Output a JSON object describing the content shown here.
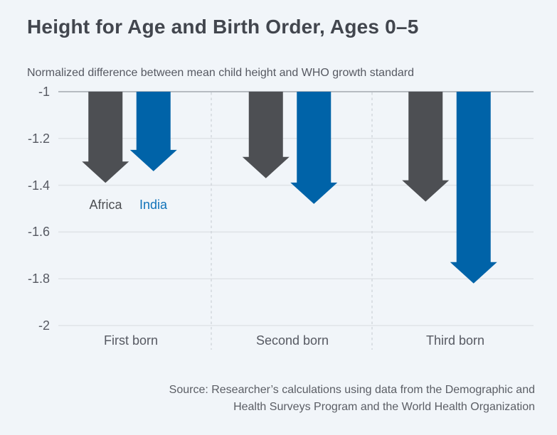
{
  "header": {
    "title": "Height for Age and Birth Order, Ages 0–5"
  },
  "chart_data": {
    "type": "bar",
    "style": "downward-arrow-bars",
    "title": "Height for Age and Birth Order, Ages 0–5",
    "axis_title": "Normalized difference between mean child height and WHO growth standard",
    "categories": [
      "First born",
      "Second born",
      "Third born"
    ],
    "series": [
      {
        "name": "Africa",
        "color": "#4d4f53",
        "values": [
          -1.39,
          -1.37,
          -1.47
        ]
      },
      {
        "name": "India",
        "color": "#0063a8",
        "values": [
          -1.34,
          -1.48,
          -1.82
        ]
      }
    ],
    "baseline": -1,
    "ylim": [
      -2,
      -1
    ],
    "yticks": [
      -1,
      -1.2,
      -1.4,
      -1.6,
      -1.8,
      -2
    ],
    "ytick_labels": [
      "-1",
      "-1.2",
      "-1.4",
      "-1.6",
      "-1.8",
      "-2"
    ],
    "legend": {
      "labels": [
        "Africa",
        "India"
      ],
      "text_colors": [
        "#4c4e52",
        "#1173b9"
      ],
      "position": "inside-below-first-group"
    },
    "grid": true,
    "source": "Source: Researcher’s calculations using data from the Demographic and Health Surveys Program and the World Health Organization"
  },
  "source": {
    "line1": "Source: Researcher’s calculations using data from the Demographic and",
    "line2": "Health Surveys Program and the World Health Organization"
  },
  "colors": {
    "background": "#f1f5f9",
    "title_text": "#42464e",
    "axis_text": "#565962",
    "baseline_line": "#b6bbc1",
    "gridline": "#dfe3e7",
    "separator": "#c4c9cf",
    "source_text": "#5b5e65"
  }
}
